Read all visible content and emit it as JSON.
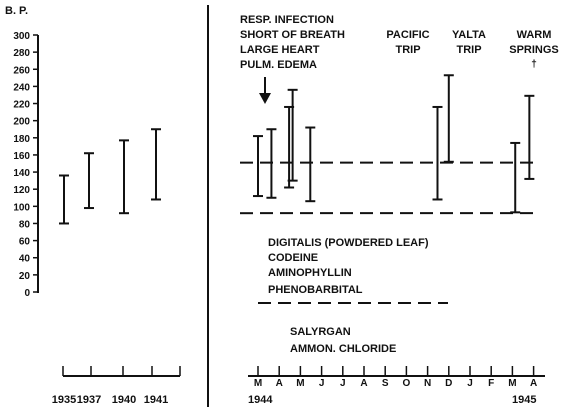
{
  "chart_data": [
    {
      "type": "range-bar",
      "title": "",
      "ylabel": "B. P.",
      "ylim": [
        0,
        300
      ],
      "yticks": [
        "300",
        "280",
        "260",
        "240",
        "220",
        "200",
        "180",
        "160",
        "140",
        "120",
        "100",
        "80",
        "60",
        "40",
        "20",
        "0"
      ],
      "categories": [
        "1935",
        "1937",
        "1940",
        "1941"
      ],
      "series": [
        {
          "values": [
            {
              "x": "1935",
              "low": 80,
              "high": 136
            },
            {
              "x": "1937",
              "low": 98,
              "high": 162
            },
            {
              "x": "1940",
              "low": 92,
              "high": 177
            },
            {
              "x": "1941",
              "low": 108,
              "high": 190
            }
          ]
        }
      ]
    },
    {
      "type": "range-bar",
      "x_months": [
        "M",
        "A",
        "M",
        "J",
        "J",
        "A",
        "S",
        "O",
        "N",
        "D",
        "J",
        "F",
        "M",
        "A"
      ],
      "x_years": [
        "1944",
        "1945"
      ],
      "ranges": [
        {
          "x": "1944-03",
          "low": 112,
          "high": 182
        },
        {
          "x": "1944-03-20",
          "low": 110,
          "high": 190
        },
        {
          "x": "1944-04-15",
          "low": 122,
          "high": 216
        },
        {
          "x": "1944-04-20",
          "low": 130,
          "high": 236
        },
        {
          "x": "1944-05-15",
          "low": 106,
          "high": 192
        },
        {
          "x": "1944-11-15",
          "low": 108,
          "high": 216
        },
        {
          "x": "1944-12-01",
          "low": 152,
          "high": 253
        },
        {
          "x": "1945-03-05",
          "low": 93,
          "high": 174
        },
        {
          "x": "1945-03-25",
          "low": 132,
          "high": 229
        }
      ],
      "reference_lines": [
        {
          "y": 151,
          "style": "dashed"
        },
        {
          "y": 92,
          "style": "dashed"
        }
      ],
      "annotations": {
        "event1": [
          "RESP. INFECTION",
          "SHORT OF BREATH",
          "LARGE HEART",
          "PULM. EDEMA"
        ],
        "event2": [
          "PACIFIC",
          "TRIP"
        ],
        "event3": [
          "YALTA",
          "TRIP"
        ],
        "event4": [
          "WARM",
          "SPRINGS",
          "†"
        ]
      },
      "medications_group1": [
        "DIGITALIS (POWDERED LEAF)",
        "CODEINE",
        "AMINOPHYLLIN",
        "PHENOBARBITAL"
      ],
      "medications_group2": [
        "SALYRGAN",
        "AMMON. CHLORIDE"
      ]
    }
  ]
}
